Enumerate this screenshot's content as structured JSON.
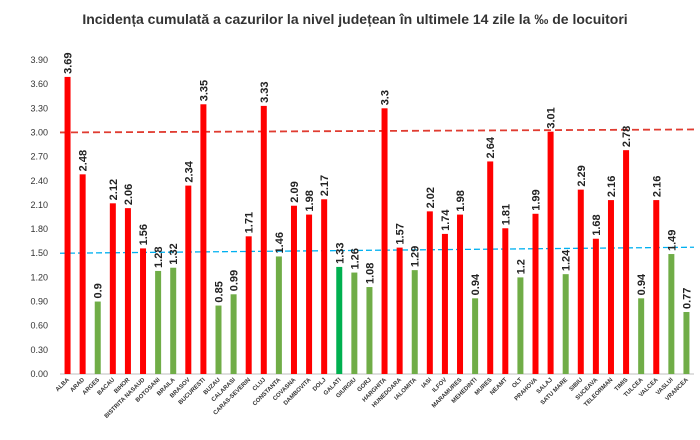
{
  "chart_data": {
    "type": "bar",
    "title": "Incidența cumulată a cazurilor la nivel județean în ultimele 14 zile la ‰ de locuitori",
    "xlabel": "",
    "ylabel": "",
    "ylim": [
      0,
      4.0
    ],
    "yticks": [
      "0.00",
      "0.30",
      "0.60",
      "0.90",
      "1.20",
      "1.50",
      "1.80",
      "2.10",
      "2.40",
      "2.70",
      "3.00",
      "3.30",
      "3.60",
      "3.90"
    ],
    "categories": [
      "ALBA",
      "ARAD",
      "ARGES",
      "BACAU",
      "BIHOR",
      "BISTRITA NASAUD",
      "BOTOSANI",
      "BRAILA",
      "BRASOV",
      "BUCURESTI",
      "BUZAU",
      "CALARASI",
      "CARAS-SEVERIN",
      "CLUJ",
      "CONSTANTA",
      "COVASNA",
      "DAMBOVITA",
      "DOLJ",
      "GALATI",
      "GIURGIU",
      "GORJ",
      "HARGHITA",
      "HUNEDOARA",
      "IALOMITA",
      "IASI",
      "ILFOV",
      "MARAMURES",
      "MEHEDINTI",
      "MURES",
      "NEAMT",
      "OLT",
      "PRAHOVA",
      "SALAJ",
      "SATU MARE",
      "SIBIU",
      "SUCEAVA",
      "TELEORMAN",
      "TIMIS",
      "TULCEA",
      "VALCEA",
      "VASLUI",
      "VRANCEA"
    ],
    "values": [
      3.69,
      2.48,
      0.9,
      2.12,
      2.06,
      1.56,
      1.28,
      1.32,
      2.34,
      3.35,
      0.85,
      0.99,
      1.71,
      3.33,
      1.46,
      2.09,
      1.98,
      2.17,
      1.33,
      1.26,
      1.08,
      3.3,
      1.57,
      1.29,
      2.02,
      1.74,
      1.98,
      0.94,
      2.64,
      1.81,
      1.2,
      1.99,
      3.01,
      1.24,
      2.29,
      1.68,
      2.16,
      2.78,
      0.94,
      2.16,
      1.49,
      0.77
    ],
    "value_labels": [
      "3.69",
      "2.48",
      "0.9",
      "2.12",
      "2.06",
      "1.56",
      "1.28",
      "1.32",
      "2.34",
      "3.35",
      "0.85",
      "0.99",
      "1.71",
      "3.33",
      "1.46",
      "2.09",
      "1.98",
      "2.17",
      "1.33",
      "1.26",
      "1.08",
      "3.3",
      "1.57",
      "1.29",
      "2.02",
      "1.74",
      "1.98",
      "0.94",
      "2.64",
      "1.81",
      "1.2",
      "1.99",
      "3.01",
      "1.24",
      "2.29",
      "1.68",
      "2.16",
      "2.78",
      "0.94",
      "2.16",
      "1.49",
      "0.77"
    ],
    "colors": {
      "above": "#ff0000",
      "below": "#70ad47",
      "highlight": "#00b050",
      "highlight_index": 18
    },
    "threshold_lines": [
      {
        "value": 3.0,
        "color": "#e03c31",
        "style": "dashed"
      },
      {
        "value": 1.5,
        "color": "#00b0f0",
        "style": "dashed"
      }
    ],
    "grid": false,
    "legend": "none"
  }
}
